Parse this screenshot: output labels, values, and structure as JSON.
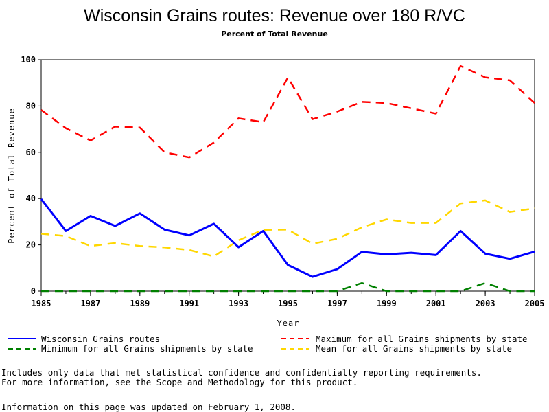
{
  "chart_data": {
    "type": "line",
    "title": "Wisconsin Grains routes: Revenue over 180 R/VC",
    "subtitle": "Percent of Total Revenue",
    "xlabel": "Year",
    "ylabel": "Percent of Total Revenue",
    "xlim": [
      1985,
      2005
    ],
    "ylim": [
      0,
      100
    ],
    "xticks": [
      "1985",
      "1987",
      "1989",
      "1991",
      "1993",
      "1995",
      "1997",
      "1999",
      "2001",
      "2003",
      "2005"
    ],
    "yticks": [
      "0",
      "20",
      "40",
      "60",
      "80",
      "100"
    ],
    "grid": false,
    "legend_position": "bottom",
    "x": [
      1985,
      1986,
      1987,
      1988,
      1989,
      1990,
      1991,
      1992,
      1993,
      1994,
      1995,
      1996,
      1997,
      1998,
      1999,
      2000,
      2001,
      2002,
      2003,
      2004,
      2005
    ],
    "series": [
      {
        "name": "Wisconsin Grains routes",
        "color": "#0000ff",
        "style": "solid",
        "values": [
          39.8,
          26,
          32.5,
          28.2,
          33.6,
          26.6,
          24.1,
          29.1,
          19,
          26,
          11.3,
          6.2,
          9.5,
          17,
          15.9,
          16.6,
          15.6,
          26,
          16.2,
          14,
          17.1
        ]
      },
      {
        "name": "Maximum for all Grains shipments by state",
        "color": "#ff0000",
        "style": "dashed",
        "values": [
          78.3,
          70.4,
          65.1,
          71.1,
          70.7,
          60,
          57.8,
          64.2,
          74.7,
          73,
          92.3,
          74.3,
          77.6,
          81.8,
          81.3,
          79,
          76.7,
          97.3,
          92.4,
          91.1,
          81.3
        ]
      },
      {
        "name": "Minimum for all Grains shipments by state",
        "color": "#008000",
        "style": "dashed",
        "values": [
          0,
          0,
          0,
          0,
          0,
          0,
          0,
          0,
          0,
          0,
          0,
          0,
          0,
          3.5,
          0,
          0,
          0,
          0,
          3.5,
          0,
          0
        ]
      },
      {
        "name": "Mean for all Grains shipments by state",
        "color": "#ffd700",
        "style": "dashed",
        "values": [
          24.8,
          23.8,
          19.5,
          20.8,
          19.5,
          18.9,
          17.8,
          15,
          22,
          26.5,
          26.6,
          20.5,
          22.6,
          27.6,
          31,
          29.5,
          29.5,
          37.9,
          39.2,
          34.2,
          35.8
        ]
      }
    ]
  },
  "notes": {
    "line1": "Includes only data that met statistical confidence and confidentialty reporting requirements.",
    "line2": "For more information, see the Scope and Methodology for this product.",
    "line3": "Information on this page was updated on February 1, 2008."
  }
}
